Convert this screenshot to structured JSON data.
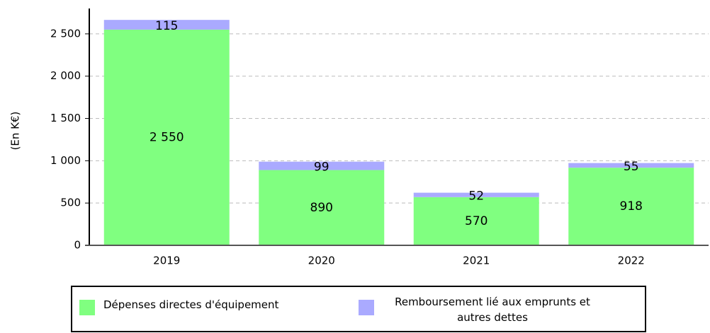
{
  "chart_data": {
    "type": "stacked_bar",
    "ylabel": "(En K€)",
    "categories": [
      "2019",
      "2020",
      "2021",
      "2022"
    ],
    "series": [
      {
        "name": "Dépenses directes d'équipement",
        "color": "#80ff80",
        "values": [
          2550,
          890,
          570,
          918
        ],
        "value_labels": [
          "2 550",
          "890",
          "570",
          "918"
        ]
      },
      {
        "name": "Remboursement lié aux emprunts et autres dettes",
        "color": "#aaaaff",
        "values": [
          115,
          99,
          52,
          55
        ]
      }
    ],
    "ylim": [
      0,
      2800
    ],
    "yticks": [
      0,
      500,
      {
        "value": 1000,
        "label": "1 000"
      },
      {
        "value": 1500,
        "label": "1 500"
      },
      {
        "value": 2000,
        "label": "2 000"
      },
      {
        "value": 2500,
        "label": "2 500"
      }
    ],
    "grid": true
  }
}
